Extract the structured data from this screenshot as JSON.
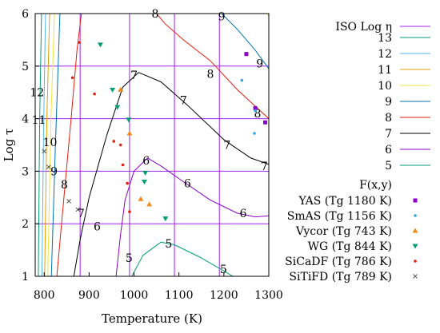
{
  "chart_data": {
    "type": "line",
    "xlabel": "Temperature (K)",
    "ylabel": "Log τ",
    "xlim": [
      780,
      1300
    ],
    "ylim": [
      1,
      6
    ],
    "xticks": [
      800,
      900,
      1000,
      1100,
      1200,
      1300
    ],
    "yticks": [
      1,
      2,
      3,
      4,
      5,
      6
    ],
    "grid_x": [
      880,
      990,
      1090,
      1190
    ],
    "grid_y": [
      2,
      3,
      4,
      5
    ],
    "grid_color": "#a020f0",
    "contour_legend_title": "ISO Log η",
    "contour_legend_title_color": "#a020f0",
    "scatter_legend_title": "F(x,y)",
    "legend_position": "right",
    "contours": [
      {
        "level": "13",
        "color": "#009e73",
        "points": [
          [
            787,
            1
          ],
          [
            790,
            4
          ],
          [
            794,
            6
          ]
        ]
      },
      {
        "level": "12",
        "color": "#56b4e9",
        "points": [
          [
            795,
            1
          ],
          [
            799,
            4
          ],
          [
            803,
            6
          ]
        ]
      },
      {
        "level": "11",
        "color": "#e69f00",
        "points": [
          [
            801,
            1
          ],
          [
            806,
            4
          ],
          [
            812,
            6
          ]
        ]
      },
      {
        "level": "10",
        "color": "#f0e442",
        "points": [
          [
            808,
            1
          ],
          [
            815,
            4
          ],
          [
            823,
            6
          ]
        ],
        "extra": [
          [
            1297,
            6
          ],
          [
            1300,
            5.95
          ]
        ]
      },
      {
        "level": "9",
        "color": "#0072b2",
        "points": [
          [
            816,
            1
          ],
          [
            825,
            3.5
          ],
          [
            835,
            6
          ]
        ],
        "extra": [
          [
            1195,
            6
          ],
          [
            1230,
            5.7
          ],
          [
            1270,
            5.3
          ],
          [
            1300,
            4.95
          ]
        ]
      },
      {
        "level": "8",
        "color": "#e51e10",
        "points": [
          [
            828,
            1
          ],
          [
            846,
            2.7
          ],
          [
            860,
            4
          ],
          [
            873,
            5.3
          ],
          [
            883,
            6
          ]
        ],
        "extra": [
          [
            1050,
            6
          ],
          [
            1070,
            5.8
          ],
          [
            1110,
            5.5
          ],
          [
            1170,
            5.1
          ],
          [
            1230,
            4.55
          ],
          [
            1300,
            4.0
          ]
        ]
      },
      {
        "level": "7",
        "color": "#000000",
        "points": [
          [
            866,
            1
          ],
          [
            880,
            1.7
          ],
          [
            900,
            2.5
          ],
          [
            940,
            3.7
          ],
          [
            975,
            4.6
          ],
          [
            1010,
            4.88
          ],
          [
            1060,
            4.7
          ],
          [
            1120,
            4.25
          ],
          [
            1200,
            3.6
          ],
          [
            1260,
            3.25
          ],
          [
            1300,
            3.13
          ]
        ]
      },
      {
        "level": "6",
        "color": "#8b00c8",
        "points": [
          [
            960,
            1
          ],
          [
            970,
            1.8
          ],
          [
            980,
            2.45
          ],
          [
            1000,
            3.0
          ],
          [
            1030,
            3.25
          ],
          [
            1060,
            3.1
          ],
          [
            1110,
            2.8
          ],
          [
            1170,
            2.45
          ],
          [
            1230,
            2.2
          ],
          [
            1270,
            2.13
          ],
          [
            1300,
            2.15
          ]
        ]
      },
      {
        "level": "5",
        "color": "#009e73",
        "points": [
          [
            995,
            1
          ],
          [
            1020,
            1.4
          ],
          [
            1060,
            1.65
          ],
          [
            1090,
            1.6
          ],
          [
            1150,
            1.35
          ],
          [
            1210,
            1.05
          ],
          [
            1220,
            1
          ]
        ]
      }
    ],
    "contour_labels": [
      {
        "text": "8",
        "x": 1047,
        "y": 6.0
      },
      {
        "text": "9",
        "x": 1195,
        "y": 5.95
      },
      {
        "text": "9",
        "x": 1280,
        "y": 5.05
      },
      {
        "text": "8",
        "x": 1170,
        "y": 4.85
      },
      {
        "text": "8",
        "x": 1275,
        "y": 4.1
      },
      {
        "text": "12",
        "x": 784,
        "y": 4.5
      },
      {
        "text": "11",
        "x": 788,
        "y": 3.98
      },
      {
        "text": "10",
        "x": 813,
        "y": 3.55
      },
      {
        "text": "9",
        "x": 822,
        "y": 3.0
      },
      {
        "text": "8",
        "x": 845,
        "y": 2.75
      },
      {
        "text": "7",
        "x": 882,
        "y": 2.2
      },
      {
        "text": "7",
        "x": 1000,
        "y": 4.83
      },
      {
        "text": "7",
        "x": 1110,
        "y": 4.35
      },
      {
        "text": "7",
        "x": 1207,
        "y": 3.5
      },
      {
        "text": "7",
        "x": 1290,
        "y": 3.1
      },
      {
        "text": "6",
        "x": 918,
        "y": 1.95
      },
      {
        "text": "6",
        "x": 1027,
        "y": 3.2
      },
      {
        "text": "6",
        "x": 1119,
        "y": 2.77
      },
      {
        "text": "6",
        "x": 1243,
        "y": 2.2
      },
      {
        "text": "5",
        "x": 1077,
        "y": 1.62
      },
      {
        "text": "5",
        "x": 1199,
        "y": 1.14
      },
      {
        "text": "5",
        "x": 989,
        "y": 1.35
      }
    ],
    "series": [
      {
        "name": "YAS (Tg 1180 K)",
        "color": "#8b00c8",
        "marker": "square",
        "points": [
          [
            1250,
            5.23
          ],
          [
            1270,
            4.2
          ],
          [
            1292,
            3.93
          ]
        ]
      },
      {
        "name": "SmAS (Tg 1156 K)",
        "color": "#33aadd",
        "marker": "dot",
        "points": [
          [
            1240,
            4.73
          ],
          [
            1270,
            4.15
          ],
          [
            1268,
            3.72
          ]
        ]
      },
      {
        "name": "Vycor (Tg 743 K)",
        "color": "#f08a1c",
        "marker": "triangle-up",
        "points": [
          [
            970,
            4.55
          ],
          [
            990,
            3.72
          ],
          [
            1015,
            2.47
          ],
          [
            1034,
            2.37
          ]
        ]
      },
      {
        "name": "WG (Tg 844 K)",
        "color": "#009e73",
        "marker": "triangle-down",
        "points": [
          [
            925,
            5.41
          ],
          [
            952,
            4.55
          ],
          [
            963,
            4.22
          ],
          [
            988,
            3.98
          ],
          [
            1025,
            2.97
          ],
          [
            1023,
            2.8
          ],
          [
            1070,
            2.1
          ]
        ]
      },
      {
        "name": "SiCaDF (Tg 786 K)",
        "color": "#e51e10",
        "marker": "dot",
        "points": [
          [
            878,
            5.45
          ],
          [
            863,
            4.78
          ],
          [
            912,
            4.47
          ],
          [
            955,
            3.57
          ],
          [
            970,
            3.5
          ],
          [
            975,
            3.12
          ],
          [
            985,
            2.77
          ],
          [
            990,
            2.23
          ]
        ]
      },
      {
        "name": "SiTiFD (Tg 789 K)",
        "color": "#555555",
        "marker": "cross",
        "points": [
          [
            800,
            3.38
          ],
          [
            810,
            3.08
          ],
          [
            855,
            2.43
          ],
          [
            875,
            2.27
          ]
        ]
      }
    ]
  }
}
